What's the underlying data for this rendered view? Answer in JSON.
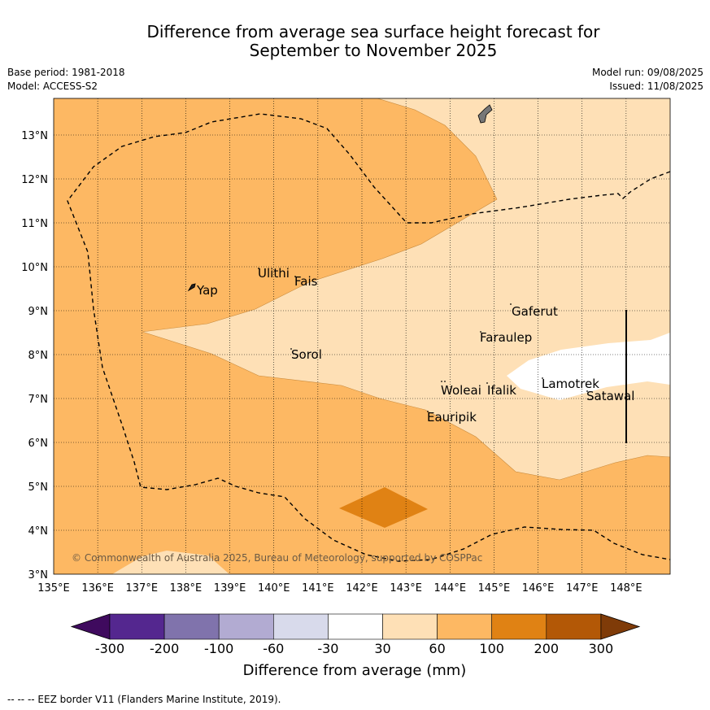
{
  "title_line1": "Difference from average sea surface height forecast for",
  "title_line2": "September to November 2025",
  "meta": {
    "base_period": "Base period: 1981-2018",
    "model": "Model: ACCESS-S2",
    "model_run": "Model run: 09/08/2025",
    "issued": "Issued: 11/08/2025"
  },
  "axes": {
    "lon_labels": [
      "135°E",
      "136°E",
      "137°E",
      "138°E",
      "139°E",
      "140°E",
      "141°E",
      "142°E",
      "143°E",
      "144°E",
      "145°E",
      "146°E",
      "147°E",
      "148°E"
    ],
    "lat_labels": [
      "3°N",
      "4°N",
      "5°N",
      "6°N",
      "7°N",
      "8°N",
      "9°N",
      "10°N",
      "11°N",
      "12°N",
      "13°N"
    ],
    "lon_range": [
      135,
      149
    ],
    "lat_range": [
      3,
      13.8
    ]
  },
  "places": {
    "yap": "Yap",
    "ulithi": "Ulithi",
    "fais": "Fais",
    "sorol": "Sorol",
    "gaferut": "Gaferut",
    "faraulep": "Faraulep",
    "lamotrek": "Lamotrek",
    "woleai": "Woleai",
    "ifalik": "Ifalik",
    "satawal": "Satawal",
    "eauripik": "Eauripik"
  },
  "copyright": "© Commonwealth of Australia 2025, Bureau of Meteorology, supported by COSPPac",
  "colorbar": {
    "labels": [
      "-300",
      "-200",
      "-100",
      "-60",
      "-30",
      "30",
      "60",
      "100",
      "200",
      "300"
    ],
    "colors": [
      "#3f0a5e",
      "#54278f",
      "#8073ac",
      "#b2abd2",
      "#d8daeb",
      "#ffffff",
      "#fee0b6",
      "#fdb863",
      "#e08214",
      "#b35806",
      "#7f3b08"
    ],
    "title": "Difference from average (mm)"
  },
  "footer": "--  --  -- EEZ border V11 (Flanders Marine Institute, 2019)."
}
